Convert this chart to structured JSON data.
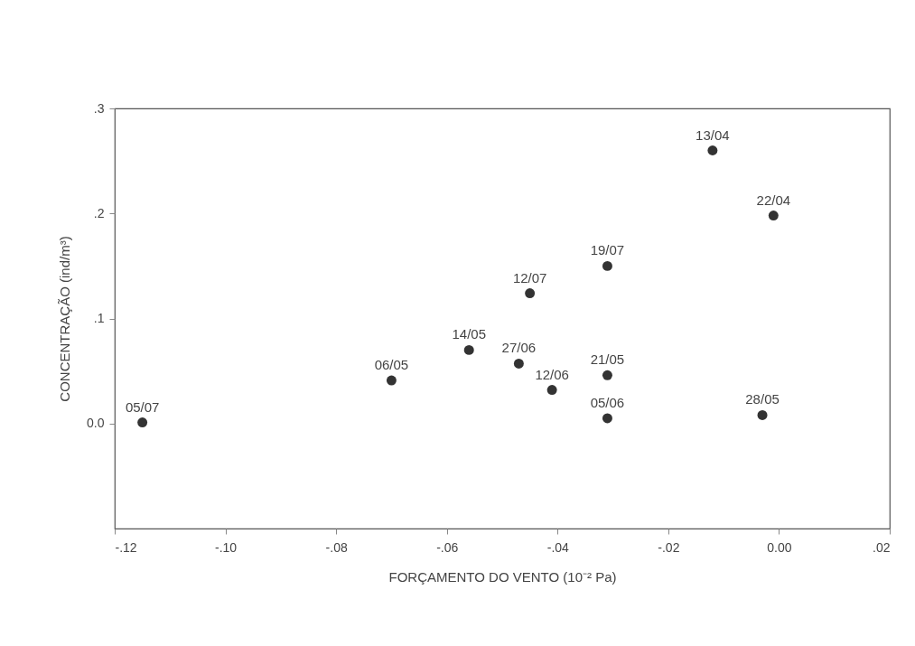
{
  "chart_data": {
    "type": "scatter",
    "xlabel": "FORÇAMENTO DO VENTO (10⁻² Pa)",
    "ylabel": "CONCENTRAÇÃO (ind/m³)",
    "x": [
      -0.115,
      -0.07,
      -0.056,
      -0.047,
      -0.041,
      -0.031,
      -0.031,
      -0.003,
      -0.045,
      -0.031,
      -0.012,
      -0.001
    ],
    "series": [
      {
        "color": "#333333",
        "values": [
          0.001,
          0.041,
          0.07,
          0.057,
          0.032,
          0.046,
          0.005,
          0.008,
          0.124,
          0.15,
          0.26,
          0.198
        ]
      }
    ],
    "xlim": [
      -0.12,
      0.02
    ],
    "ylim": [
      -0.1,
      0.3
    ],
    "xticks": [
      {
        "value": -0.12,
        "label": "-.12"
      },
      {
        "value": -0.1,
        "label": "-.10"
      },
      {
        "value": -0.08,
        "label": "-.08"
      },
      {
        "value": -0.06,
        "label": "-.06"
      },
      {
        "value": -0.04,
        "label": "-.04"
      },
      {
        "value": -0.02,
        "label": "-.02"
      },
      {
        "value": 0,
        "label": "0.00"
      },
      {
        "value": 0.02,
        "label": ".02"
      }
    ],
    "yticks": [
      {
        "value": 0,
        "label": "0.0"
      },
      {
        "value": 0.1,
        "label": ".1"
      },
      {
        "value": 0.2,
        "label": ".2"
      },
      {
        "value": 0.3,
        "label": ".3"
      }
    ],
    "marker": "circle",
    "grid": false,
    "annotations": [
      {
        "text": "05/07",
        "x": -0.115,
        "y": 0.001
      },
      {
        "text": "06/05",
        "x": -0.07,
        "y": 0.041
      },
      {
        "text": "14/05",
        "x": -0.056,
        "y": 0.07
      },
      {
        "text": "27/06",
        "x": -0.047,
        "y": 0.057
      },
      {
        "text": "12/06",
        "x": -0.041,
        "y": 0.032
      },
      {
        "text": "21/05",
        "x": -0.031,
        "y": 0.046
      },
      {
        "text": "05/06",
        "x": -0.031,
        "y": 0.005
      },
      {
        "text": "28/05",
        "x": -0.003,
        "y": 0.008
      },
      {
        "text": "12/07",
        "x": -0.045,
        "y": 0.124
      },
      {
        "text": "19/07",
        "x": -0.031,
        "y": 0.15
      },
      {
        "text": "13/04",
        "x": -0.012,
        "y": 0.26
      },
      {
        "text": "22/04",
        "x": -0.001,
        "y": 0.198
      }
    ]
  }
}
